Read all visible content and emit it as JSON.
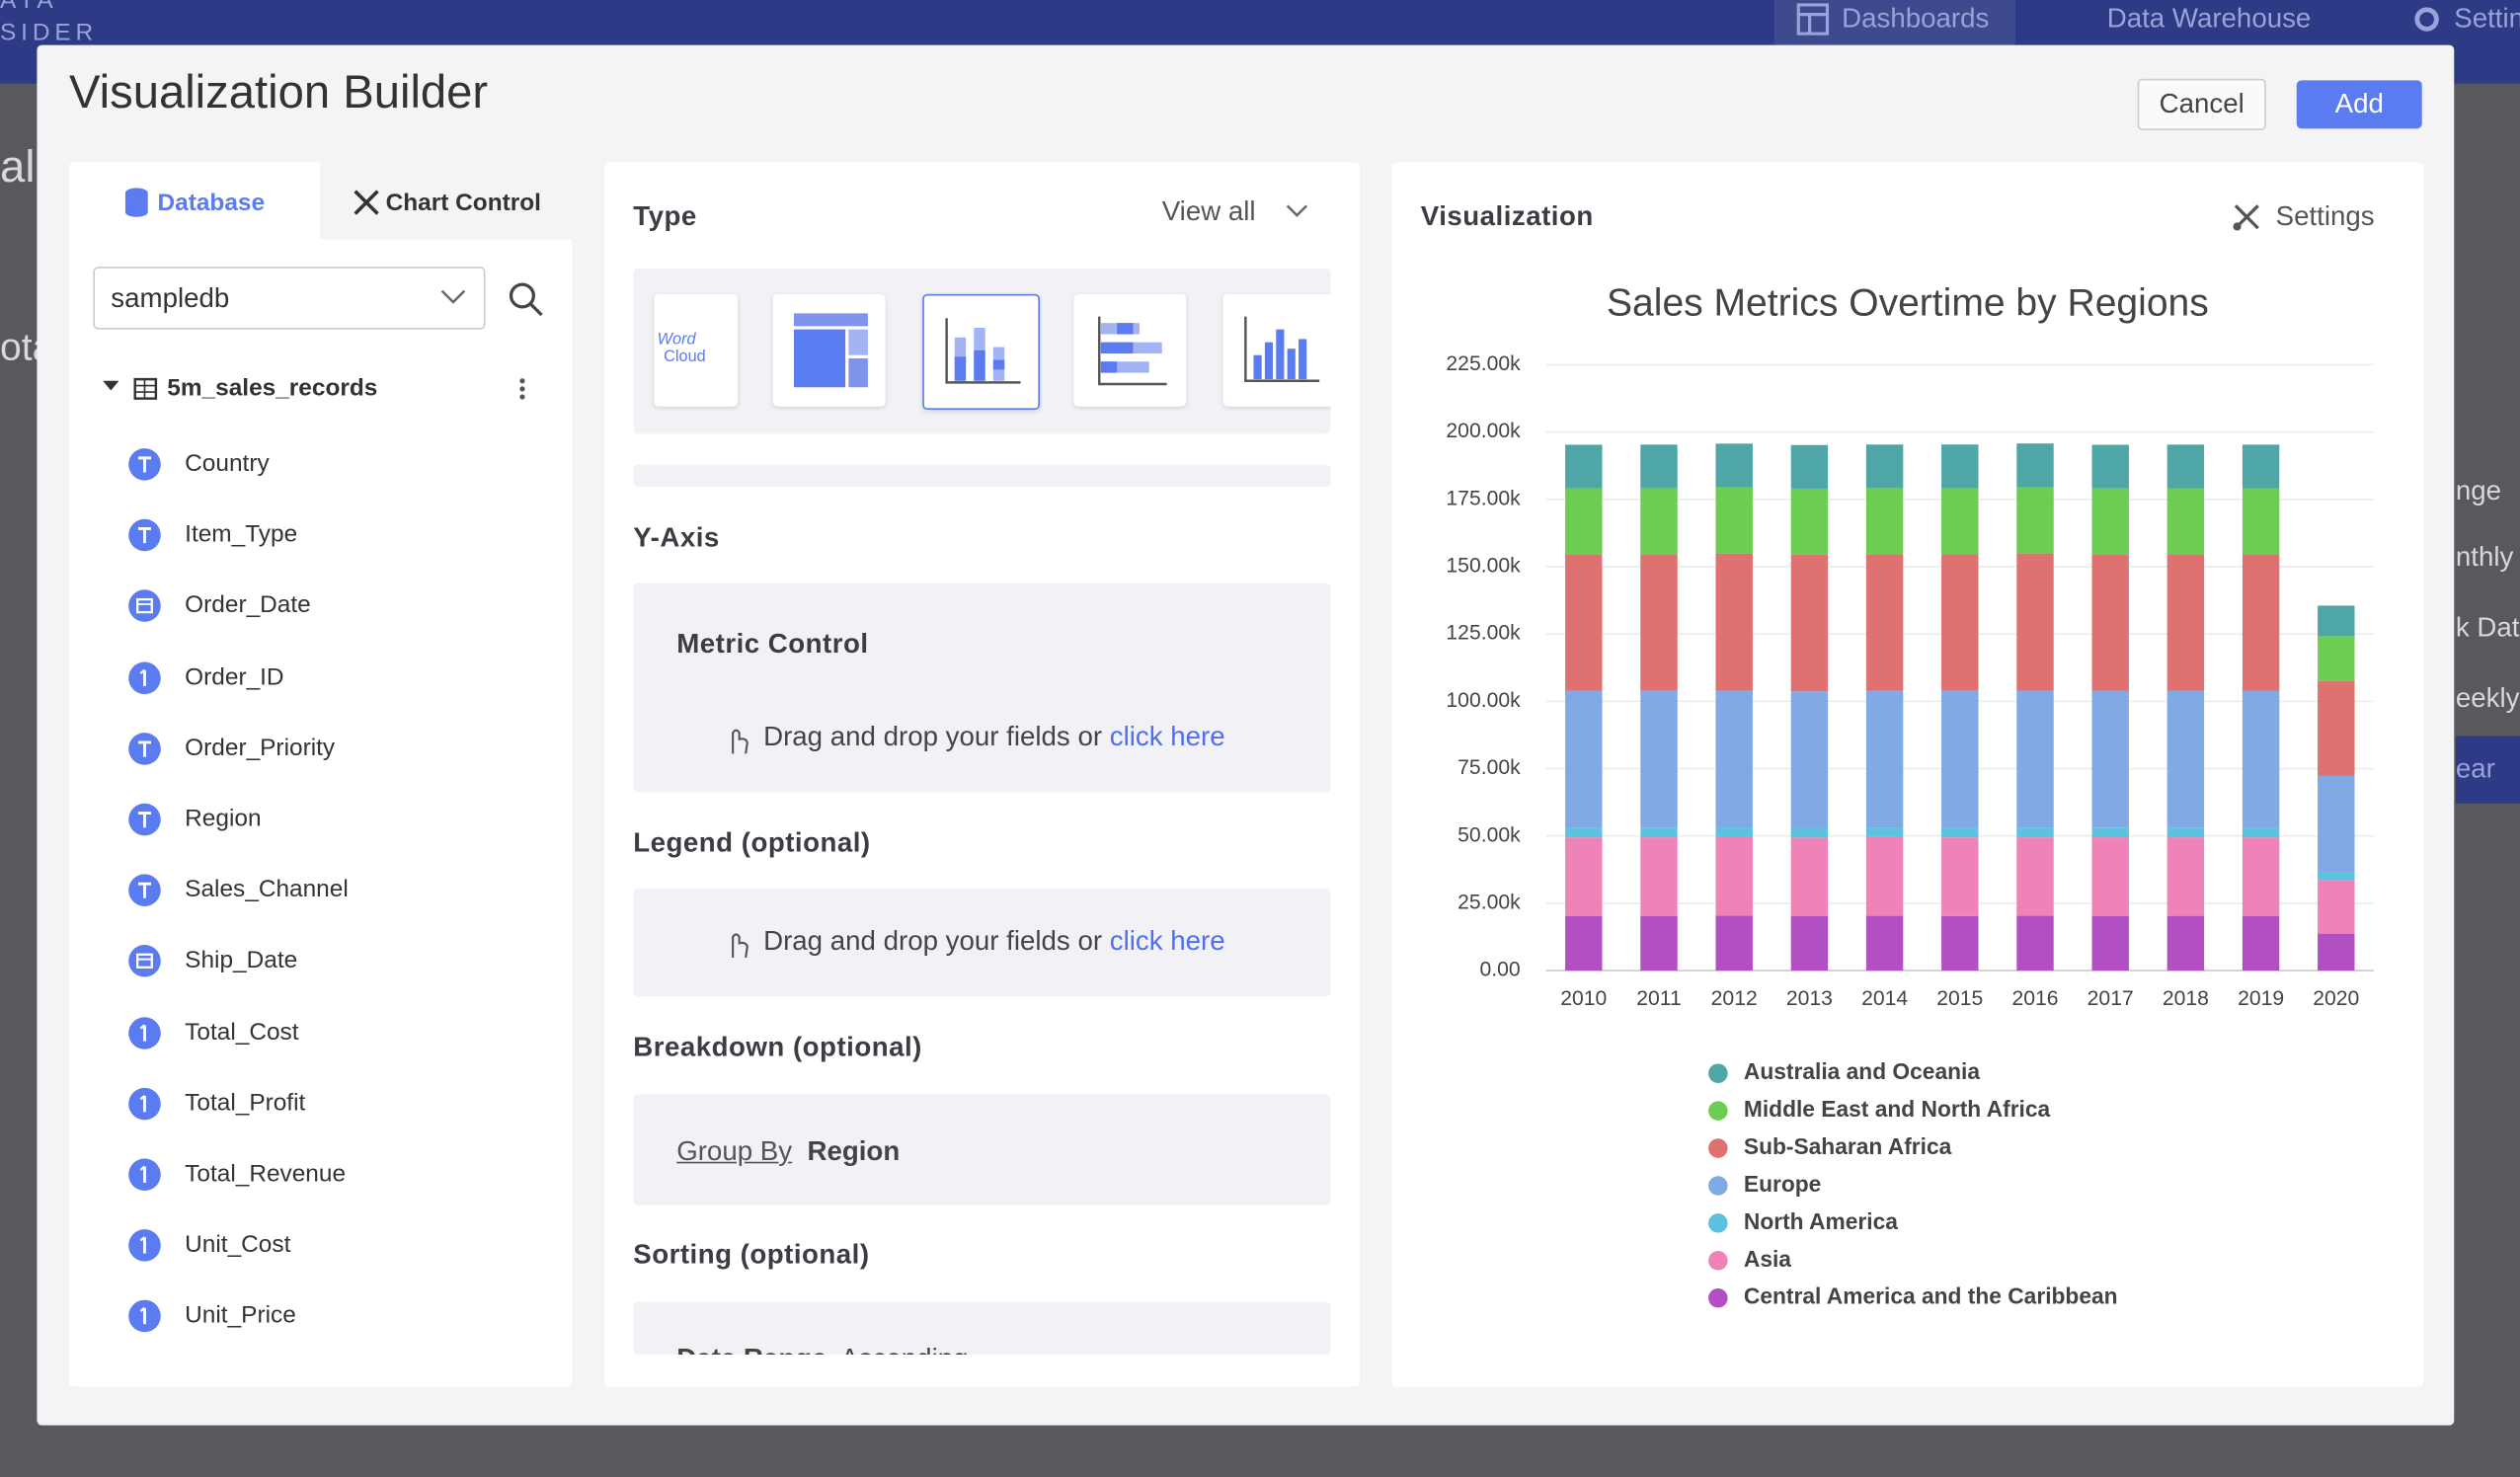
{
  "nav": {
    "brand_top": "ATA",
    "brand_bottom": "SIDER",
    "items": [
      "Dashboards",
      "Data Warehouse",
      "Settin"
    ]
  },
  "background_fragments": [
    "al",
    "ota",
    "nge",
    "nthly",
    "k Date",
    "eekly",
    "ear"
  ],
  "header": {
    "title": "Visualization Builder",
    "cancel": "Cancel",
    "add": "Add"
  },
  "left_panel": {
    "tabs": [
      "Database",
      "Chart Control"
    ],
    "database": "sampledb",
    "table": "5m_sales_records",
    "fields": [
      {
        "name": "Country",
        "kind": "text"
      },
      {
        "name": "Item_Type",
        "kind": "text"
      },
      {
        "name": "Order_Date",
        "kind": "date"
      },
      {
        "name": "Order_ID",
        "kind": "number"
      },
      {
        "name": "Order_Priority",
        "kind": "text"
      },
      {
        "name": "Region",
        "kind": "text"
      },
      {
        "name": "Sales_Channel",
        "kind": "text"
      },
      {
        "name": "Ship_Date",
        "kind": "date"
      },
      {
        "name": "Total_Cost",
        "kind": "number"
      },
      {
        "name": "Total_Profit",
        "kind": "number"
      },
      {
        "name": "Total_Revenue",
        "kind": "number"
      },
      {
        "name": "Unit_Cost",
        "kind": "number"
      },
      {
        "name": "Unit_Price",
        "kind": "number"
      }
    ]
  },
  "middle_panel": {
    "type_title": "Type",
    "view_all": "View all",
    "word_cloud_icon": [
      "Word",
      "Cloud"
    ],
    "y_axis": "Y-Axis",
    "metric_control": "Metric Control",
    "drop_hint": "Drag and drop your fields or",
    "click_here": "click here",
    "legend": "Legend (optional)",
    "breakdown": "Breakdown (optional)",
    "group_by": "Group By",
    "group_by_value": "Region",
    "sorting": "Sorting (optional)",
    "sorting_field": "Date Range",
    "sorting_order": "Ascending"
  },
  "right_panel": {
    "title": "Visualization",
    "settings": "Settings"
  },
  "chart_data": {
    "type": "stacked-bar",
    "title": "Sales Metrics Overtime by Regions",
    "categories": [
      "2010",
      "2011",
      "2012",
      "2013",
      "2014",
      "2015",
      "2016",
      "2017",
      "2018",
      "2019",
      "2020"
    ],
    "ylim": [
      0,
      225000
    ],
    "yticks": [
      {
        "value": 0,
        "label": "0.00"
      },
      {
        "value": 25000,
        "label": "25.00k"
      },
      {
        "value": 50000,
        "label": "50.00k"
      },
      {
        "value": 75000,
        "label": "75.00k"
      },
      {
        "value": 100000,
        "label": "100.00k"
      },
      {
        "value": 125000,
        "label": "125.00k"
      },
      {
        "value": 150000,
        "label": "150.00k"
      },
      {
        "value": 175000,
        "label": "175.00k"
      },
      {
        "value": 200000,
        "label": "200.00k"
      },
      {
        "value": 225000,
        "label": "225.00k"
      }
    ],
    "grid": true,
    "series": [
      {
        "name": "Australia and Oceania",
        "color": "#4ea7a6",
        "values": [
          16180,
          16200,
          16300,
          16190,
          16170,
          16210,
          16320,
          16180,
          16200,
          16190,
          11380
        ]
      },
      {
        "name": "Middle East and North Africa",
        "color": "#6dcc52",
        "values": [
          24480,
          24500,
          24520,
          24470,
          24510,
          24490,
          24530,
          24460,
          24500,
          24480,
          16650
        ]
      },
      {
        "name": "Sub-Saharan Africa",
        "color": "#df7171",
        "values": [
          50820,
          50790,
          50900,
          50810,
          50760,
          50830,
          50950,
          50800,
          50790,
          50840,
          35240
        ]
      },
      {
        "name": "Europe",
        "color": "#80a9e6",
        "values": [
          50760,
          50800,
          50840,
          50720,
          50790,
          50810,
          50860,
          50750,
          50780,
          50770,
          35800
        ]
      },
      {
        "name": "North America",
        "color": "#5cc2df",
        "values": [
          3610,
          3590,
          3620,
          3600,
          3580,
          3610,
          3630,
          3600,
          3590,
          3620,
          3010
        ]
      },
      {
        "name": "Asia",
        "color": "#ef82b6",
        "values": [
          29150,
          29200,
          29180,
          29100,
          29220,
          29170,
          29130,
          29190,
          29160,
          29140,
          19740
        ]
      },
      {
        "name": "Central America and the Caribbean",
        "color": "#b24fc2",
        "values": [
          20310,
          20280,
          20350,
          20290,
          20330,
          20270,
          20340,
          20300,
          20320,
          20290,
          13720
        ]
      }
    ]
  }
}
